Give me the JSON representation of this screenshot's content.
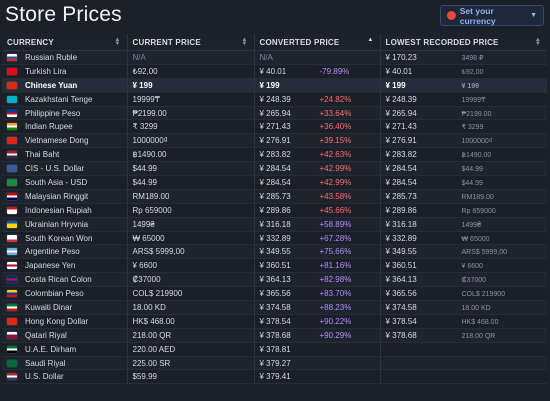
{
  "page": {
    "title": "Store Prices",
    "currency_button": "Set your currency"
  },
  "table": {
    "headers": {
      "currency": "CURRENCY",
      "current_price": "CURRENT PRICE",
      "converted_price": "CONVERTED PRICE",
      "lowest_price": "LOWEST RECORDED PRICE"
    },
    "rows": [
      {
        "name": "Russian Ruble",
        "flag": [
          "#ffffff",
          "#1c4fb8",
          "#d52b1e"
        ],
        "current": "N/A",
        "converted": "N/A",
        "pct": "",
        "pct_dir": "neutral",
        "low": "¥ 170.23",
        "low_local": "3498 ₽",
        "muted_price": true
      },
      {
        "name": "Turkish Lira",
        "flag": [
          "#e30a17",
          "#e30a17",
          "#e30a17"
        ],
        "current": "₺92,00",
        "converted": "¥ 40.01",
        "pct": "-79.89%",
        "pct_dir": "down",
        "low": "¥ 40.01",
        "low_local": "₺92,00"
      },
      {
        "name": "Chinese Yuan",
        "flag": [
          "#de2910",
          "#de2910",
          "#de2910"
        ],
        "current": "¥ 199",
        "converted": "¥ 199",
        "pct": "",
        "pct_dir": "neutral",
        "low": "¥ 199",
        "low_local": "¥ 199",
        "highlight": true
      },
      {
        "name": "Kazakhstani Tenge",
        "flag": [
          "#00afca",
          "#00afca",
          "#00afca"
        ],
        "current": "19999₸",
        "converted": "¥ 248.39",
        "pct": "+24.82%",
        "pct_dir": "up",
        "low": "¥ 248.39",
        "low_local": "19999₸"
      },
      {
        "name": "Philippine Peso",
        "flag": [
          "#0038a8",
          "#ce1126",
          "#ffffff"
        ],
        "current": "₱2199.00",
        "converted": "¥ 265.94",
        "pct": "+33.64%",
        "pct_dir": "up",
        "low": "¥ 265.94",
        "low_local": "₱2199.00"
      },
      {
        "name": "Indian Rupee",
        "flag": [
          "#ff9933",
          "#ffffff",
          "#138808"
        ],
        "current": "₹ 3299",
        "converted": "¥ 271.43",
        "pct": "+36.40%",
        "pct_dir": "up",
        "low": "¥ 271.43",
        "low_local": "₹ 3299"
      },
      {
        "name": "Vietnamese Dong",
        "flag": [
          "#da251d",
          "#da251d",
          "#da251d"
        ],
        "current": "1000000₫",
        "converted": "¥ 276.91",
        "pct": "+39.15%",
        "pct_dir": "up",
        "low": "¥ 276.91",
        "low_local": "1000000₫"
      },
      {
        "name": "Thai Baht",
        "flag": [
          "#a51931",
          "#f4f5f8",
          "#2d2a4a"
        ],
        "current": "฿1490.00",
        "converted": "¥ 283.82",
        "pct": "+42.63%",
        "pct_dir": "up",
        "low": "¥ 283.82",
        "low_local": "฿1490.00"
      },
      {
        "name": "CIS - U.S. Dollar",
        "flag": [
          "#3c5a99",
          "#3c5a99",
          "#3c5a99"
        ],
        "current": "$44.99",
        "converted": "¥ 284.54",
        "pct": "+42.99%",
        "pct_dir": "up",
        "low": "¥ 284.54",
        "low_local": "$44.99"
      },
      {
        "name": "South Asia - USD",
        "flag": [
          "#1e8a3c",
          "#1e8a3c",
          "#1e8a3c"
        ],
        "current": "$44.99",
        "converted": "¥ 284.54",
        "pct": "+42.99%",
        "pct_dir": "up",
        "low": "¥ 284.54",
        "low_local": "$44.99"
      },
      {
        "name": "Malaysian Ringgit",
        "flag": [
          "#cc0001",
          "#ffffff",
          "#010066"
        ],
        "current": "RM189.00",
        "converted": "¥ 285.73",
        "pct": "+43.58%",
        "pct_dir": "up",
        "low": "¥ 285.73",
        "low_local": "RM189.00"
      },
      {
        "name": "Indonesian Rupiah",
        "flag": [
          "#ce1126",
          "#ffffff",
          "#ffffff"
        ],
        "current": "Rp 659000",
        "converted": "¥ 289.86",
        "pct": "+45.66%",
        "pct_dir": "up",
        "low": "¥ 289.86",
        "low_local": "Rp 659000"
      },
      {
        "name": "Ukrainian Hryvnia",
        "flag": [
          "#0057b7",
          "#ffd700",
          "#ffd700"
        ],
        "current": "1499₴",
        "converted": "¥ 316.18",
        "pct": "+58.89%",
        "pct_dir": "down",
        "low": "¥ 316.18",
        "low_local": "1499₴"
      },
      {
        "name": "South Korean Won",
        "flag": [
          "#ffffff",
          "#ffffff",
          "#cd2e3a"
        ],
        "current": "₩ 65000",
        "converted": "¥ 332.89",
        "pct": "+67.28%",
        "pct_dir": "down",
        "low": "¥ 332.89",
        "low_local": "₩ 65000"
      },
      {
        "name": "Argentine Peso",
        "flag": [
          "#74acdf",
          "#ffffff",
          "#74acdf"
        ],
        "current": "ARS$ 5999,00",
        "converted": "¥ 349.55",
        "pct": "+75.66%",
        "pct_dir": "down",
        "low": "¥ 349.55",
        "low_local": "ARS$ 5999,00"
      },
      {
        "name": "Japanese Yen",
        "flag": [
          "#ffffff",
          "#bc002d",
          "#ffffff"
        ],
        "current": "¥ 6600",
        "converted": "¥ 360.51",
        "pct": "+81.16%",
        "pct_dir": "down",
        "low": "¥ 360.51",
        "low_local": "¥ 6600"
      },
      {
        "name": "Costa Rican Colon",
        "flag": [
          "#002b7f",
          "#ce1126",
          "#002b7f"
        ],
        "current": "₡37000",
        "converted": "¥ 364.13",
        "pct": "+82.98%",
        "pct_dir": "down",
        "low": "¥ 364.13",
        "low_local": "₡37000"
      },
      {
        "name": "Colombian Peso",
        "flag": [
          "#fcd116",
          "#003893",
          "#ce1126"
        ],
        "current": "COL$ 219900",
        "converted": "¥ 365.56",
        "pct": "+83.70%",
        "pct_dir": "down",
        "low": "¥ 365.56",
        "low_local": "COL$ 219900"
      },
      {
        "name": "Kuwaiti Dinar",
        "flag": [
          "#007a3d",
          "#ffffff",
          "#ce1126"
        ],
        "current": "18.00 KD",
        "converted": "¥ 374.58",
        "pct": "+88.23%",
        "pct_dir": "down",
        "low": "¥ 374.58",
        "low_local": "18.00 KD"
      },
      {
        "name": "Hong Kong Dollar",
        "flag": [
          "#de2910",
          "#de2910",
          "#de2910"
        ],
        "current": "HK$ 468.00",
        "converted": "¥ 378.54",
        "pct": "+90.22%",
        "pct_dir": "down",
        "low": "¥ 378.54",
        "low_local": "HK$ 468.00"
      },
      {
        "name": "Qatari Riyal",
        "flag": [
          "#ffffff",
          "#8a1538",
          "#8a1538"
        ],
        "current": "218.00 QR",
        "converted": "¥ 378.68",
        "pct": "+90.29%",
        "pct_dir": "down",
        "low": "¥ 378.68",
        "low_local": "218.00 QR"
      },
      {
        "name": "U.A.E. Dirham",
        "flag": [
          "#00732f",
          "#ffffff",
          "#000000"
        ],
        "current": "220.00 AED",
        "converted": "¥ 378.81",
        "pct": "",
        "pct_dir": "down",
        "low": "",
        "low_local": ""
      },
      {
        "name": "Saudi Riyal",
        "flag": [
          "#006c35",
          "#006c35",
          "#006c35"
        ],
        "current": "225.00 SR",
        "converted": "¥ 379.27",
        "pct": "",
        "pct_dir": "down",
        "low": "",
        "low_local": ""
      },
      {
        "name": "U.S. Dollar",
        "flag": [
          "#b22234",
          "#ffffff",
          "#3c3b6e"
        ],
        "current": "$59.99",
        "converted": "¥ 379.41",
        "pct": "",
        "pct_dir": "down",
        "low": "",
        "low_local": ""
      }
    ]
  },
  "colors": {
    "background": "#1b2029",
    "accent": "#8fb4f0",
    "increase": "#ff6b6b",
    "high_increase": "#b48cff"
  }
}
